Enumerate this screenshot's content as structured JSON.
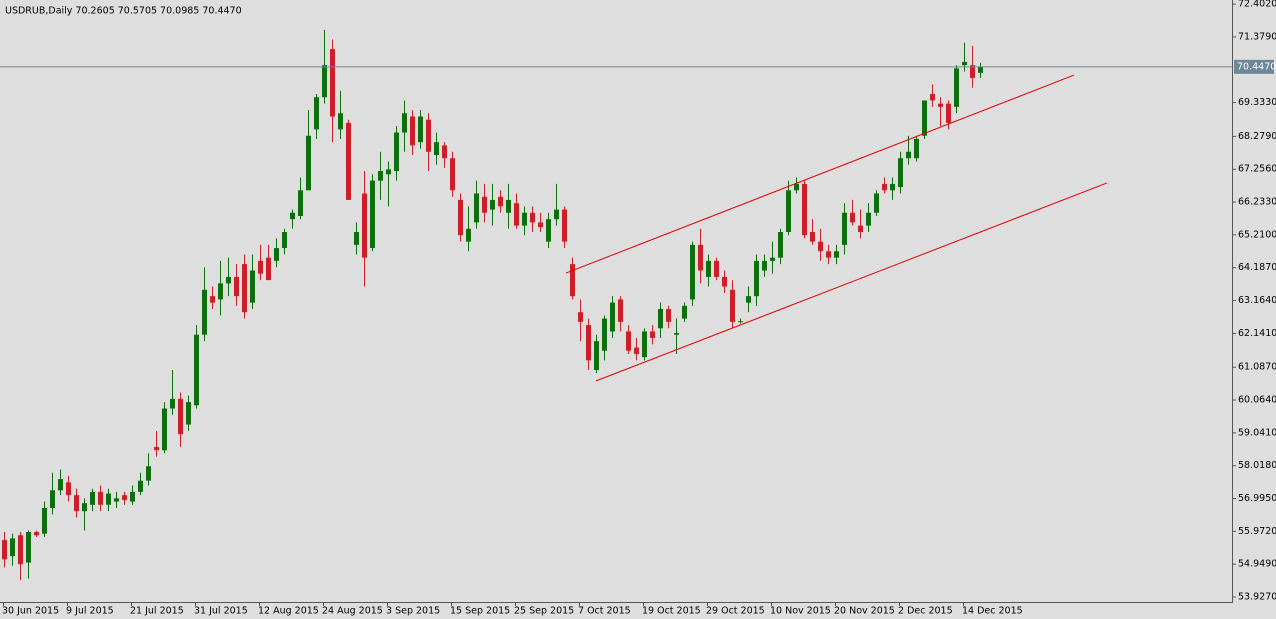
{
  "chart_data": {
    "type": "candlestick",
    "title": "USDRUB,Daily  70.2605 70.5705 70.0985 70.4470",
    "categories": [
      "30 Jun 2015",
      null,
      null,
      null,
      null,
      null,
      null,
      null,
      "9 Jul 2015",
      null,
      null,
      null,
      null,
      null,
      null,
      null,
      "21 Jul 2015",
      null,
      null,
      null,
      null,
      null,
      null,
      null,
      "31 Jul 2015",
      null,
      null,
      null,
      null,
      null,
      null,
      null,
      "12 Aug 2015",
      null,
      null,
      null,
      null,
      null,
      null,
      null,
      "24 Aug 2015",
      null,
      null,
      null,
      null,
      null,
      null,
      null,
      "3 Sep 2015",
      null,
      null,
      null,
      null,
      null,
      null,
      null,
      "15 Sep 2015",
      null,
      null,
      null,
      null,
      null,
      null,
      null,
      "25 Sep 2015",
      null,
      null,
      null,
      null,
      null,
      null,
      null,
      "7 Oct 2015",
      null,
      null,
      null,
      null,
      null,
      null,
      null,
      "19 Oct 2015",
      null,
      null,
      null,
      null,
      null,
      null,
      null,
      "29 Oct 2015",
      null,
      null,
      null,
      null,
      null,
      null,
      null,
      "10 Nov 2015",
      null,
      null,
      null,
      null,
      null,
      null,
      null,
      "20 Nov 2015",
      null,
      null,
      null,
      null,
      null,
      null,
      null,
      "2 Dec 2015",
      null,
      null,
      null,
      null,
      null,
      null,
      null,
      "14 Dec 2015",
      null,
      null
    ],
    "open": [
      55.7,
      55.2,
      55.85,
      55.0,
      55.95,
      55.9,
      56.7,
      57.25,
      57.5,
      57.1,
      56.6,
      56.8,
      57.2,
      56.8,
      56.9,
      57.1,
      56.9,
      57.2,
      57.55,
      58.6,
      58.5,
      59.8,
      60.1,
      59.3,
      59.9,
      62.1,
      63.3,
      63.2,
      63.7,
      63.9,
      64.3,
      63.1,
      64.4,
      64.5,
      64.4,
      64.8,
      65.7,
      65.8,
      66.6,
      68.5,
      69.5,
      71.0,
      68.5,
      68.7,
      64.9,
      66.5,
      64.8,
      66.9,
      67.1,
      67.2,
      68.4,
      68.9,
      68.1,
      68.8,
      67.7,
      68.0,
      67.6,
      66.3,
      65.0,
      65.6,
      66.4,
      66.0,
      66.4,
      65.9,
      66.2,
      65.5,
      65.9,
      65.6,
      65.0,
      65.7,
      66.0,
      64.3,
      62.8,
      62.4,
      61.0,
      61.6,
      62.2,
      63.2,
      62.2,
      61.7,
      61.4,
      62.2,
      62.3,
      62.9,
      62.1,
      62.6,
      63.2,
      64.9,
      63.9,
      64.4,
      63.9,
      63.5,
      62.5,
      63.1,
      63.3,
      64.1,
      64.4,
      64.5,
      65.3,
      66.6,
      66.8,
      65.3,
      65.0,
      64.7,
      64.5,
      64.9,
      65.9,
      65.5,
      65.5,
      65.9,
      66.8,
      66.6,
      66.7,
      67.6,
      67.6,
      68.3,
      69.6,
      69.3,
      69.3,
      69.2,
      70.5,
      70.5,
      70.2605
    ],
    "high": [
      55.95,
      55.9,
      55.95,
      56.0,
      56.0,
      56.9,
      57.8,
      57.9,
      57.7,
      57.3,
      57.0,
      57.3,
      57.4,
      57.3,
      57.2,
      57.2,
      57.4,
      57.8,
      58.4,
      59.1,
      60.0,
      61.0,
      60.3,
      60.2,
      62.4,
      64.2,
      63.6,
      64.4,
      64.5,
      64.3,
      64.6,
      64.6,
      64.9,
      64.9,
      65.1,
      65.4,
      66.0,
      67.0,
      69.1,
      69.6,
      71.6,
      71.3,
      69.7,
      68.8,
      65.6,
      67.2,
      67.1,
      67.8,
      67.5,
      68.6,
      69.4,
      69.1,
      69.1,
      69.0,
      68.4,
      68.1,
      67.8,
      66.5,
      66.1,
      66.9,
      66.8,
      66.8,
      66.6,
      66.8,
      66.5,
      66.1,
      66.1,
      65.9,
      65.9,
      66.8,
      66.1,
      64.5,
      63.2,
      62.6,
      62.1,
      62.7,
      63.3,
      63.3,
      62.4,
      62.0,
      62.3,
      62.4,
      63.1,
      63.0,
      62.6,
      63.1,
      65.0,
      65.4,
      64.6,
      64.5,
      64.1,
      63.8,
      62.6,
      63.6,
      64.6,
      64.6,
      65.0,
      65.4,
      66.9,
      67.0,
      66.9,
      65.7,
      65.4,
      64.9,
      64.9,
      66.2,
      66.3,
      66.0,
      66.2,
      66.6,
      67.0,
      67.0,
      67.8,
      68.3,
      68.3,
      69.4,
      69.9,
      69.5,
      69.4,
      70.5,
      71.2,
      71.1,
      70.5705
    ],
    "low": [
      54.85,
      54.9,
      54.45,
      54.5,
      55.8,
      55.8,
      56.5,
      57.1,
      56.9,
      56.4,
      56.0,
      56.6,
      56.6,
      56.6,
      56.7,
      56.8,
      56.8,
      57.1,
      57.4,
      58.3,
      58.4,
      59.6,
      58.6,
      59.1,
      59.8,
      61.9,
      62.9,
      62.7,
      63.3,
      63.0,
      62.6,
      62.9,
      63.8,
      63.9,
      64.2,
      64.6,
      65.4,
      65.7,
      66.6,
      68.2,
      69.3,
      68.1,
      68.2,
      66.3,
      64.6,
      63.6,
      64.7,
      66.3,
      66.1,
      66.9,
      67.8,
      67.7,
      67.9,
      67.2,
      67.4,
      67.3,
      66.4,
      65.0,
      64.7,
      65.4,
      65.6,
      65.5,
      65.9,
      65.4,
      65.4,
      65.2,
      65.3,
      65.3,
      64.8,
      65.5,
      64.8,
      63.2,
      61.9,
      61.0,
      60.9,
      61.3,
      62.0,
      62.2,
      61.5,
      61.3,
      61.3,
      61.8,
      62.0,
      62.3,
      61.5,
      62.5,
      63.0,
      63.7,
      63.6,
      63.8,
      63.4,
      62.3,
      62.45,
      62.8,
      63.0,
      63.9,
      64.0,
      64.3,
      65.2,
      66.5,
      65.1,
      64.9,
      64.4,
      64.3,
      64.3,
      64.6,
      65.5,
      65.1,
      65.3,
      65.8,
      66.5,
      66.3,
      66.5,
      67.4,
      67.5,
      68.2,
      69.2,
      68.6,
      68.5,
      69.0,
      70.3,
      69.8,
      70.0985
    ],
    "close": [
      55.1,
      55.75,
      54.95,
      55.95,
      55.85,
      56.7,
      57.25,
      57.6,
      57.1,
      56.6,
      56.85,
      57.2,
      56.8,
      57.15,
      57.0,
      56.95,
      57.2,
      57.55,
      58.0,
      58.5,
      59.8,
      60.1,
      59.0,
      60.0,
      62.1,
      63.5,
      63.1,
      63.7,
      63.9,
      63.3,
      62.8,
      64.1,
      64.0,
      63.8,
      64.8,
      65.3,
      65.9,
      66.6,
      68.3,
      69.5,
      70.5,
      68.9,
      69.0,
      66.3,
      65.3,
      64.5,
      66.9,
      67.2,
      67.25,
      68.4,
      69.0,
      68.0,
      68.9,
      67.8,
      68.1,
      67.6,
      66.6,
      65.2,
      65.4,
      66.5,
      65.9,
      66.3,
      66.1,
      66.3,
      65.5,
      65.9,
      65.6,
      65.45,
      65.7,
      66.0,
      65.0,
      63.3,
      62.5,
      61.3,
      61.9,
      62.6,
      63.1,
      62.5,
      61.6,
      61.5,
      62.2,
      62.0,
      62.9,
      62.5,
      62.15,
      63.0,
      64.9,
      64.1,
      64.4,
      63.9,
      63.6,
      62.5,
      62.52,
      63.3,
      64.4,
      64.4,
      64.5,
      65.3,
      66.6,
      66.8,
      65.2,
      65.0,
      64.7,
      64.5,
      64.7,
      65.9,
      65.6,
      65.3,
      65.9,
      66.5,
      66.6,
      66.8,
      67.6,
      67.8,
      68.2,
      69.4,
      69.4,
      69.2,
      68.7,
      70.4,
      70.6,
      70.1,
      70.447
    ],
    "up_color": "#0b700b",
    "down_color": "#cc1f2a",
    "ylim": [
      53.77,
      72.53
    ],
    "yticks": [
      {
        "value": 72.402,
        "label": "72.4020"
      },
      {
        "value": 71.379,
        "label": "71.3790"
      },
      {
        "value": 69.333,
        "label": "69.3330"
      },
      {
        "value": 68.279,
        "label": "68.2790"
      },
      {
        "value": 67.256,
        "label": "67.2560"
      },
      {
        "value": 66.233,
        "label": "66.2330"
      },
      {
        "value": 65.21,
        "label": "65.2100"
      },
      {
        "value": 64.187,
        "label": "64.1870"
      },
      {
        "value": 63.164,
        "label": "63.1640"
      },
      {
        "value": 62.141,
        "label": "62.1410"
      },
      {
        "value": 61.087,
        "label": "61.0870"
      },
      {
        "value": 60.064,
        "label": "60.0640"
      },
      {
        "value": 59.041,
        "label": "59.0410"
      },
      {
        "value": 58.018,
        "label": "58.0180"
      },
      {
        "value": 56.995,
        "label": "56.9950"
      },
      {
        "value": 55.972,
        "label": "55.9720"
      },
      {
        "value": 54.949,
        "label": "54.9490"
      },
      {
        "value": 53.927,
        "label": "53.9270"
      }
    ],
    "last_price": {
      "value": 70.447,
      "label": "70.4470"
    },
    "price_line_color": "#6d8796",
    "trendline_color": "#e60000",
    "trendlines": [
      {
        "start": {
          "bar": 70.25,
          "price": 64.02
        },
        "end": {
          "bar": 133.75,
          "price": 70.19
        }
      },
      {
        "start": {
          "bar": 74,
          "price": 60.66
        },
        "end": {
          "bar": 137.875,
          "price": 66.83
        }
      }
    ]
  }
}
